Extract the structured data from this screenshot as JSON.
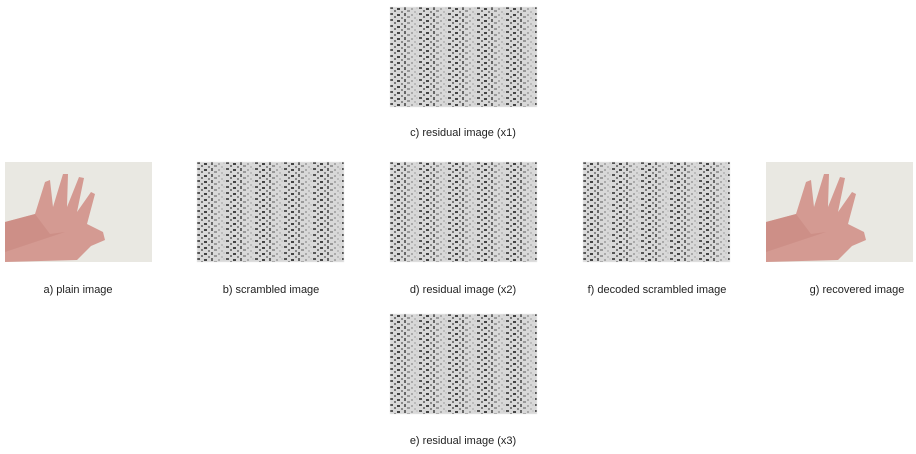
{
  "panels": [
    {
      "caption": "c) residual image (x1)"
    },
    {
      "caption": "a) plain image"
    },
    {
      "caption": "b) scrambled image"
    },
    {
      "caption": "d) residual image (x2)"
    },
    {
      "caption": "f) decoded scrambled image"
    },
    {
      "caption": "g) recovered image"
    },
    {
      "caption": "e) residual image (x3)"
    }
  ]
}
